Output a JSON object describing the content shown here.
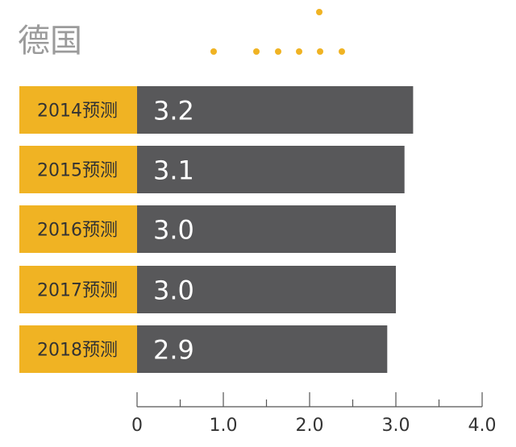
{
  "chart_data": {
    "type": "bar",
    "orientation": "horizontal",
    "title": "德国",
    "categories": [
      "2014预测",
      "2015预测",
      "2016预测",
      "2017预测",
      "2018预测"
    ],
    "values": [
      3.2,
      3.1,
      3.0,
      3.0,
      2.9
    ],
    "value_labels": [
      "3.2",
      "3.1",
      "3.0",
      "3.0",
      "2.9"
    ],
    "xlim": [
      0,
      4.0
    ],
    "x_ticks": [
      0,
      1.0,
      2.0,
      3.0,
      4.0
    ],
    "x_tick_labels": [
      "0",
      "1.0",
      "2.0",
      "3.0",
      "4.0"
    ],
    "x_minor_ticks": [
      0.5,
      1.5,
      2.5,
      3.5
    ],
    "grid": false,
    "colors": {
      "bar": "#58585a",
      "category_box": "#f0b323",
      "category_text": "#333333",
      "value_text": "#ffffff",
      "title": "#9b9b9b",
      "axis": "#555555",
      "tick_label": "#333333",
      "decor_dots": "#f0b323"
    }
  }
}
